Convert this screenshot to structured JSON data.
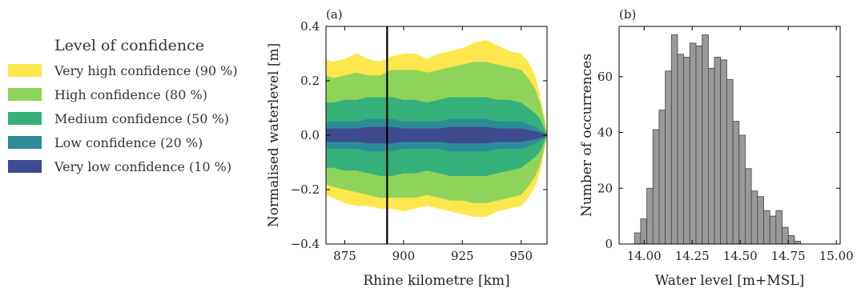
{
  "chart_data": [
    {
      "type": "area",
      "panel_label": "(a)",
      "xlabel": "Rhine kilometre [km]",
      "ylabel": "Normalised waterlevel [m]",
      "xlim": [
        867,
        961
      ],
      "ylim": [
        -0.4,
        0.4
      ],
      "xticks": [
        875,
        900,
        925,
        950
      ],
      "yticks": [
        -0.4,
        -0.2,
        0.0,
        0.2,
        0.4
      ],
      "vline_x": 893,
      "legend": {
        "title": "Level of confidence",
        "placement": "left"
      },
      "x": [
        867,
        870,
        875,
        880,
        885,
        890,
        895,
        900,
        905,
        910,
        915,
        920,
        925,
        930,
        935,
        940,
        945,
        950,
        953,
        956,
        958,
        960,
        961
      ],
      "series": [
        {
          "name": "Very high confidence (90 %)",
          "color": "#fde74c",
          "upper": [
            0.28,
            0.27,
            0.28,
            0.3,
            0.28,
            0.27,
            0.29,
            0.3,
            0.3,
            0.28,
            0.3,
            0.31,
            0.32,
            0.34,
            0.35,
            0.33,
            0.31,
            0.3,
            0.27,
            0.22,
            0.15,
            0.06,
            0.0
          ],
          "lower": [
            -0.22,
            -0.23,
            -0.25,
            -0.26,
            -0.26,
            -0.27,
            -0.27,
            -0.28,
            -0.27,
            -0.26,
            -0.27,
            -0.28,
            -0.29,
            -0.3,
            -0.3,
            -0.28,
            -0.27,
            -0.26,
            -0.23,
            -0.19,
            -0.14,
            -0.05,
            0.0
          ]
        },
        {
          "name": "High confidence (80 %)",
          "color": "#8fd45a",
          "upper": [
            0.22,
            0.21,
            0.22,
            0.23,
            0.22,
            0.22,
            0.24,
            0.24,
            0.24,
            0.23,
            0.24,
            0.25,
            0.26,
            0.27,
            0.27,
            0.26,
            0.25,
            0.24,
            0.21,
            0.17,
            0.12,
            0.05,
            0.0
          ],
          "lower": [
            -0.18,
            -0.19,
            -0.2,
            -0.21,
            -0.22,
            -0.23,
            -0.23,
            -0.23,
            -0.23,
            -0.22,
            -0.23,
            -0.24,
            -0.24,
            -0.25,
            -0.25,
            -0.24,
            -0.23,
            -0.22,
            -0.19,
            -0.15,
            -0.11,
            -0.04,
            0.0
          ]
        },
        {
          "name": "Medium confidence (50 %)",
          "color": "#35b07a",
          "upper": [
            0.12,
            0.12,
            0.13,
            0.13,
            0.14,
            0.14,
            0.14,
            0.13,
            0.13,
            0.12,
            0.13,
            0.14,
            0.14,
            0.14,
            0.14,
            0.13,
            0.13,
            0.12,
            0.1,
            0.08,
            0.06,
            0.02,
            0.0
          ],
          "lower": [
            -0.12,
            -0.12,
            -0.13,
            -0.13,
            -0.14,
            -0.15,
            -0.15,
            -0.14,
            -0.14,
            -0.13,
            -0.14,
            -0.15,
            -0.15,
            -0.15,
            -0.15,
            -0.14,
            -0.13,
            -0.12,
            -0.1,
            -0.08,
            -0.06,
            -0.02,
            0.0
          ]
        },
        {
          "name": "Low confidence (20 %)",
          "color": "#2c8c97",
          "upper": [
            0.05,
            0.05,
            0.05,
            0.05,
            0.06,
            0.06,
            0.06,
            0.05,
            0.05,
            0.05,
            0.05,
            0.06,
            0.06,
            0.06,
            0.06,
            0.05,
            0.05,
            0.05,
            0.04,
            0.03,
            0.02,
            0.01,
            0.0
          ],
          "lower": [
            -0.05,
            -0.05,
            -0.05,
            -0.05,
            -0.06,
            -0.06,
            -0.06,
            -0.05,
            -0.05,
            -0.05,
            -0.05,
            -0.06,
            -0.06,
            -0.06,
            -0.06,
            -0.05,
            -0.05,
            -0.05,
            -0.04,
            -0.03,
            -0.02,
            -0.01,
            0.0
          ]
        },
        {
          "name": "Very low confidence (10 %)",
          "color": "#3f4b8f",
          "upper": [
            0.025,
            0.025,
            0.025,
            0.025,
            0.03,
            0.03,
            0.03,
            0.025,
            0.025,
            0.025,
            0.025,
            0.03,
            0.03,
            0.03,
            0.03,
            0.025,
            0.025,
            0.025,
            0.02,
            0.015,
            0.01,
            0.005,
            0.0
          ],
          "lower": [
            -0.025,
            -0.025,
            -0.025,
            -0.025,
            -0.03,
            -0.03,
            -0.03,
            -0.025,
            -0.025,
            -0.025,
            -0.025,
            -0.03,
            -0.03,
            -0.03,
            -0.03,
            -0.025,
            -0.025,
            -0.025,
            -0.02,
            -0.015,
            -0.01,
            -0.005,
            0.0
          ]
        }
      ]
    },
    {
      "type": "bar",
      "subtype": "histogram",
      "panel_label": "(b)",
      "xlabel": "Water level [m+MSL]",
      "ylabel": "Number of occurrences",
      "xlim": [
        13.87,
        15.02
      ],
      "ylim": [
        0,
        78
      ],
      "xticks": [
        14.0,
        14.25,
        14.5,
        14.75,
        15.0
      ],
      "xtick_labels": [
        "14.00",
        "14.25",
        "14.50",
        "14.75",
        "15.00"
      ],
      "yticks": [
        0,
        20,
        40,
        60
      ],
      "bar_color": "#999999",
      "edge_color": "#444444",
      "bin_start": 13.95,
      "bin_width": 0.032,
      "counts": [
        4,
        9,
        20,
        41,
        48,
        62,
        75,
        68,
        67,
        72,
        71,
        75,
        63,
        67,
        66,
        59,
        44,
        39,
        27,
        19,
        17,
        12,
        10,
        12,
        6,
        3,
        1
      ]
    }
  ]
}
